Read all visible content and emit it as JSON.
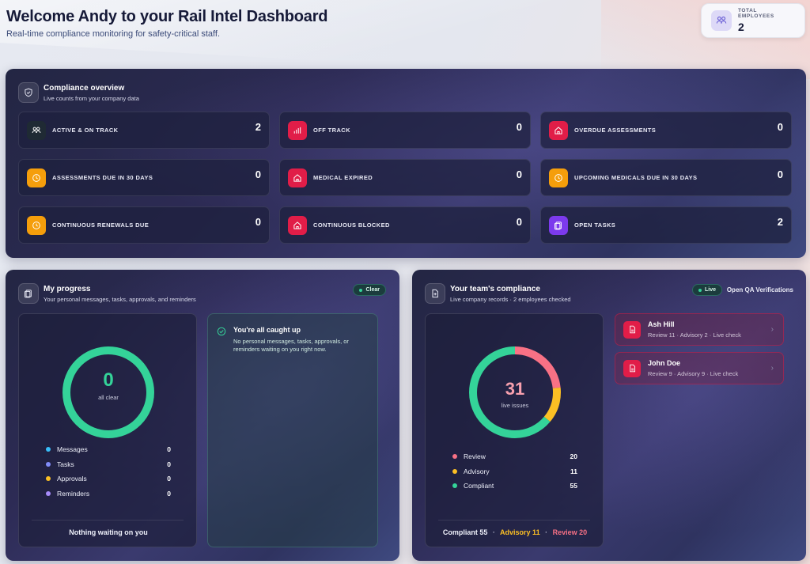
{
  "header": {
    "title": "Welcome Andy to your Rail Intel Dashboard",
    "subtitle": "Real-time compliance monitoring for safety-critical staff."
  },
  "total_employees": {
    "label": "TOTAL EMPLOYEES",
    "value": "2",
    "icon": "people-icon"
  },
  "overview": {
    "title": "Compliance overview",
    "subtitle": "Live counts from your company data",
    "stats": [
      {
        "label": "ACTIVE & ON TRACK",
        "value": "2",
        "icon": "people-icon",
        "color": "#1f2a34"
      },
      {
        "label": "OFF TRACK",
        "value": "0",
        "icon": "bar-chart-icon",
        "color": "#e11d48"
      },
      {
        "label": "OVERDUE ASSESSMENTS",
        "value": "0",
        "icon": "home-icon",
        "color": "#e11d48"
      },
      {
        "label": "ASSESSMENTS DUE IN 30 DAYS",
        "value": "0",
        "icon": "clock-icon",
        "color": "#f59e0b"
      },
      {
        "label": "MEDICAL EXPIRED",
        "value": "0",
        "icon": "home-icon",
        "color": "#e11d48"
      },
      {
        "label": "UPCOMING MEDICALS DUE IN 30 DAYS",
        "value": "0",
        "icon": "clock-icon",
        "color": "#f59e0b"
      },
      {
        "label": "CONTINUOUS RENEWALS DUE",
        "value": "0",
        "icon": "clock-icon",
        "color": "#f59e0b"
      },
      {
        "label": "CONTINUOUS BLOCKED",
        "value": "0",
        "icon": "home-icon",
        "color": "#e11d48"
      },
      {
        "label": "OPEN TASKS",
        "value": "2",
        "icon": "clipboard-icon",
        "color": "#7c3aed"
      }
    ]
  },
  "progress": {
    "title": "My progress",
    "subtitle": "Your personal messages, tasks, approvals, and reminders",
    "badge": "Clear",
    "donut_value": "0",
    "donut_label": "all clear",
    "legend": [
      {
        "label": "Messages",
        "value": "0",
        "color": "#38bdf8"
      },
      {
        "label": "Tasks",
        "value": "0",
        "color": "#818cf8"
      },
      {
        "label": "Approvals",
        "value": "0",
        "color": "#fbbf24"
      },
      {
        "label": "Reminders",
        "value": "0",
        "color": "#a78bfa"
      }
    ],
    "footer": "Nothing waiting on you",
    "caught_up_title": "You're all caught up",
    "caught_up_text": "No personal messages, tasks, approvals, or reminders waiting on you right now."
  },
  "team": {
    "title": "Your team's compliance",
    "subtitle": "Live company records · 2 employees checked",
    "badge": "Live",
    "link": "Open QA Verifications",
    "donut_value": "31",
    "donut_label": "live issues",
    "chart_data": {
      "type": "pie",
      "categories": [
        "Review",
        "Advisory",
        "Compliant"
      ],
      "values": [
        20,
        11,
        55
      ],
      "colors": [
        "#f87185",
        "#fbbf24",
        "#34d399"
      ]
    },
    "legend": [
      {
        "label": "Review",
        "value": "20",
        "color": "#f87185"
      },
      {
        "label": "Advisory",
        "value": "11",
        "color": "#fbbf24"
      },
      {
        "label": "Compliant",
        "value": "55",
        "color": "#34d399"
      }
    ],
    "footer": {
      "compliant": "Compliant 55",
      "sep": "·",
      "advisory": "Advisory 11",
      "review": "Review 20"
    },
    "people": [
      {
        "name": "Ash Hill",
        "meta": "Review 11 · Advisory 2 · Live check"
      },
      {
        "name": "John Doe",
        "meta": "Review 9 · Advisory 9 · Live check"
      }
    ]
  }
}
